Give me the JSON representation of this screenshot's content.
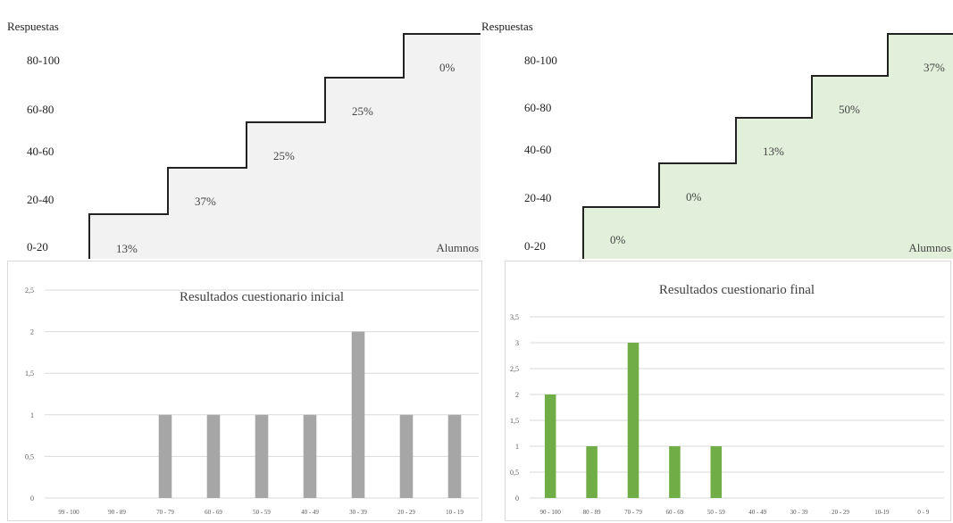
{
  "staircases": [
    {
      "ylabel": "Respuestas",
      "xlabel": "Alumnos",
      "fill": "#f2f2f2",
      "rows": [
        "80-100",
        "60-80",
        "40-60",
        "20-40",
        "0-20"
      ],
      "steps": [
        "13%",
        "37%",
        "25%",
        "25%",
        "0%"
      ]
    },
    {
      "ylabel": "Respuestas",
      "xlabel": "Alumnos",
      "fill": "#e2efda",
      "rows": [
        "80-100",
        "60-80",
        "40-60",
        "20-40",
        "0-20"
      ],
      "steps": [
        "0%",
        "0%",
        "13%",
        "50%",
        "37%"
      ]
    }
  ],
  "chart_data": [
    {
      "type": "bar",
      "title": "Resultados cuestionario inicial",
      "categories": [
        "99 - 100",
        "90 - 89",
        "70 - 79",
        "60 - 69",
        "50 - 59",
        "40 - 49",
        "30 - 39",
        "20 - 29",
        "10 - 19"
      ],
      "values": [
        0,
        0,
        1,
        1,
        1,
        1,
        2,
        1,
        1
      ],
      "ylim": [
        0,
        2.5
      ],
      "yticks": [
        "0",
        "0,5",
        "1",
        "1,5",
        "2",
        "2,5"
      ],
      "color": "#a6a6a6",
      "grid": true
    },
    {
      "type": "bar",
      "title": "Resultados cuestionario final",
      "categories": [
        "90 - 100",
        "80 - 89",
        "70 - 79",
        "60 - 69",
        "50 - 59",
        "40 - 49",
        "30 - 39",
        "20 - 29",
        "10-19",
        "0 - 9"
      ],
      "values": [
        2,
        1,
        3,
        1,
        1,
        0,
        0,
        0,
        0,
        0
      ],
      "ylim": [
        0,
        3.5
      ],
      "yticks": [
        "0",
        "0,5",
        "1",
        "1,5",
        "2",
        "2,5",
        "3",
        "3,5"
      ],
      "color": "#70ad47",
      "grid": true
    }
  ]
}
